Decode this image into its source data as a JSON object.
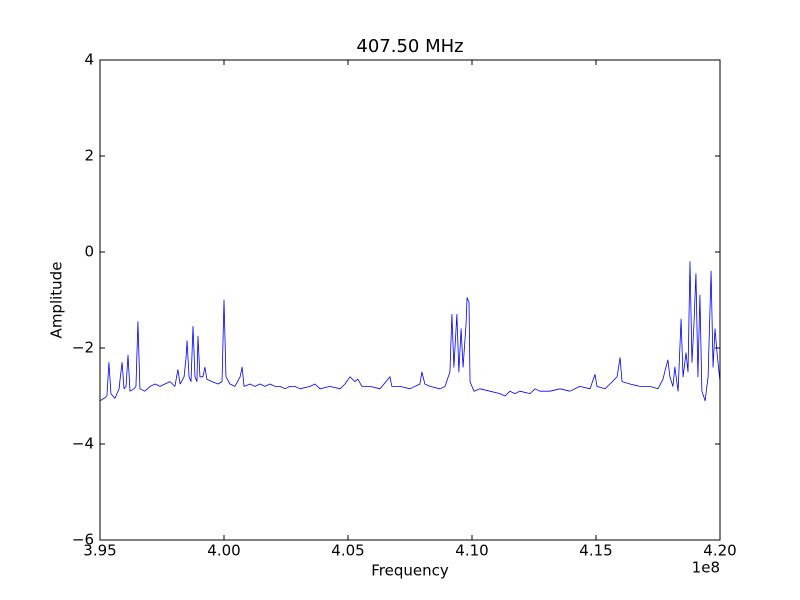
{
  "chart_data": {
    "type": "line",
    "title": "407.50 MHz",
    "x_label": "Frequency",
    "y_label": "Amplitude",
    "x_offset_label": "1e8",
    "color": "#0000ff",
    "xlim": [
      395000000,
      420000000
    ],
    "xticks": [
      {
        "value": 395000000,
        "label": "3.95"
      },
      {
        "value": 400000000,
        "label": "4.00"
      },
      {
        "value": 405000000,
        "label": "4.05"
      },
      {
        "value": 410000000,
        "label": "4.10"
      },
      {
        "value": 415000000,
        "label": "4.15"
      },
      {
        "value": 420000000,
        "label": "4.20"
      }
    ],
    "ylim": [
      -6,
      4
    ],
    "yticks": [
      {
        "value": -6,
        "label": "−6"
      },
      {
        "value": -4,
        "label": "−4"
      },
      {
        "value": -2,
        "label": "−2"
      },
      0,
      2,
      4
    ],
    "x": [
      395000000,
      395160000,
      395280000,
      395360000,
      395440000,
      395600000,
      395770000,
      395810000,
      395890000,
      395970000,
      396050000,
      396130000,
      396210000,
      396370000,
      396450000,
      396530000,
      396610000,
      396810000,
      397020000,
      397220000,
      397420000,
      397620000,
      397820000,
      398020000,
      398140000,
      398230000,
      398390000,
      398470000,
      398510000,
      398590000,
      398670000,
      398750000,
      398830000,
      398910000,
      398950000,
      399030000,
      399150000,
      399230000,
      399310000,
      399520000,
      399760000,
      399920000,
      400000000,
      400080000,
      400240000,
      400440000,
      400650000,
      400730000,
      400810000,
      401050000,
      401250000,
      401450000,
      401650000,
      401850000,
      402060000,
      402260000,
      402460000,
      402660000,
      402860000,
      403060000,
      403470000,
      403670000,
      403870000,
      404270000,
      404680000,
      404880000,
      405080000,
      405280000,
      405400000,
      405560000,
      405890000,
      406290000,
      406690000,
      406770000,
      407100000,
      407500000,
      407900000,
      407980000,
      408100000,
      408310000,
      408710000,
      408910000,
      409110000,
      409190000,
      409270000,
      409390000,
      409470000,
      409560000,
      409640000,
      409760000,
      409800000,
      409880000,
      409920000,
      410080000,
      410320000,
      410720000,
      411130000,
      411330000,
      411530000,
      411730000,
      411930000,
      412340000,
      412540000,
      412740000,
      413140000,
      413550000,
      413950000,
      414350000,
      414760000,
      414960000,
      415040000,
      415360000,
      415560000,
      415850000,
      415970000,
      416050000,
      416370000,
      416770000,
      417180000,
      417500000,
      417700000,
      417820000,
      417900000,
      417980000,
      418100000,
      418180000,
      418310000,
      418430000,
      418510000,
      418630000,
      418710000,
      418790000,
      418870000,
      418950000,
      419030000,
      419110000,
      419190000,
      419270000,
      419400000,
      419520000,
      419640000,
      419720000,
      419800000,
      419880000,
      420000000
    ],
    "values": [
      -3.1,
      -3.05,
      -3.0,
      -2.3,
      -2.95,
      -3.05,
      -2.85,
      -2.65,
      -2.3,
      -2.85,
      -2.8,
      -2.15,
      -2.9,
      -2.85,
      -2.8,
      -1.45,
      -2.85,
      -2.9,
      -2.8,
      -2.75,
      -2.8,
      -2.75,
      -2.7,
      -2.8,
      -2.45,
      -2.75,
      -2.6,
      -2.2,
      -1.85,
      -2.6,
      -2.7,
      -1.55,
      -2.6,
      -2.7,
      -1.75,
      -2.6,
      -2.6,
      -2.4,
      -2.65,
      -2.7,
      -2.75,
      -2.7,
      -1.0,
      -2.6,
      -2.75,
      -2.8,
      -2.6,
      -2.4,
      -2.8,
      -2.75,
      -2.8,
      -2.75,
      -2.8,
      -2.75,
      -2.8,
      -2.8,
      -2.85,
      -2.8,
      -2.8,
      -2.85,
      -2.8,
      -2.75,
      -2.85,
      -2.8,
      -2.85,
      -2.75,
      -2.6,
      -2.7,
      -2.65,
      -2.8,
      -2.8,
      -2.85,
      -2.6,
      -2.8,
      -2.8,
      -2.85,
      -2.75,
      -2.5,
      -2.75,
      -2.8,
      -2.85,
      -2.8,
      -2.5,
      -1.3,
      -2.4,
      -1.3,
      -2.5,
      -1.6,
      -2.4,
      -1.5,
      -0.95,
      -1.05,
      -2.7,
      -2.9,
      -2.85,
      -2.9,
      -2.95,
      -3.0,
      -2.9,
      -2.95,
      -2.9,
      -2.95,
      -2.85,
      -2.9,
      -2.9,
      -2.85,
      -2.9,
      -2.8,
      -2.85,
      -2.55,
      -2.8,
      -2.85,
      -2.75,
      -2.6,
      -2.2,
      -2.7,
      -2.75,
      -2.8,
      -2.8,
      -2.85,
      -2.65,
      -2.4,
      -2.25,
      -2.6,
      -2.8,
      -2.4,
      -2.9,
      -1.4,
      -2.6,
      -2.1,
      -2.5,
      -0.2,
      -2.3,
      -1.5,
      -0.45,
      -2.6,
      -0.9,
      -2.9,
      -3.1,
      -2.6,
      -0.4,
      -2.4,
      -1.6,
      -2.1,
      -2.7
    ]
  }
}
